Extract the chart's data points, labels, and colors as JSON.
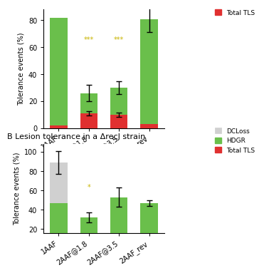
{
  "panel_B_title": "B Lesion tolerance in a ΔrecJ strain",
  "categories": [
    "1AAF",
    "2AAF@1.8",
    "2AAF@3.5",
    "2AAF_rev"
  ],
  "panel_A": {
    "hdgr": [
      80,
      15,
      20,
      78
    ],
    "tls": [
      2,
      11,
      10,
      3
    ],
    "hdgr_err": [
      0,
      6,
      5,
      10
    ],
    "tls_err": [
      0,
      1.5,
      1.5,
      0
    ],
    "significance": [
      null,
      "***",
      "***",
      null
    ],
    "sig_y": [
      63,
      63,
      63,
      null
    ],
    "yticks": [
      0,
      20,
      40,
      60,
      80
    ],
    "ylim": [
      0,
      88
    ]
  },
  "panel_B": {
    "hdgr": [
      47,
      32,
      53,
      47
    ],
    "dcloss": [
      42,
      0,
      0,
      0
    ],
    "hdgr_err": [
      10,
      5,
      10,
      3
    ],
    "dcloss_err": [
      12,
      0,
      0,
      0
    ],
    "significance": [
      null,
      "*",
      null,
      null
    ],
    "sig_y": [
      null,
      60,
      null,
      null
    ],
    "yticks": [
      20,
      40,
      60,
      80,
      100
    ],
    "ylim": [
      16,
      108
    ]
  },
  "colors": {
    "hdgr": "#6abf4b",
    "tls": "#e03030",
    "dcloss": "#d0d0d0"
  },
  "ylabel": "Tolerance events (%)",
  "bg_color": "#ffffff"
}
